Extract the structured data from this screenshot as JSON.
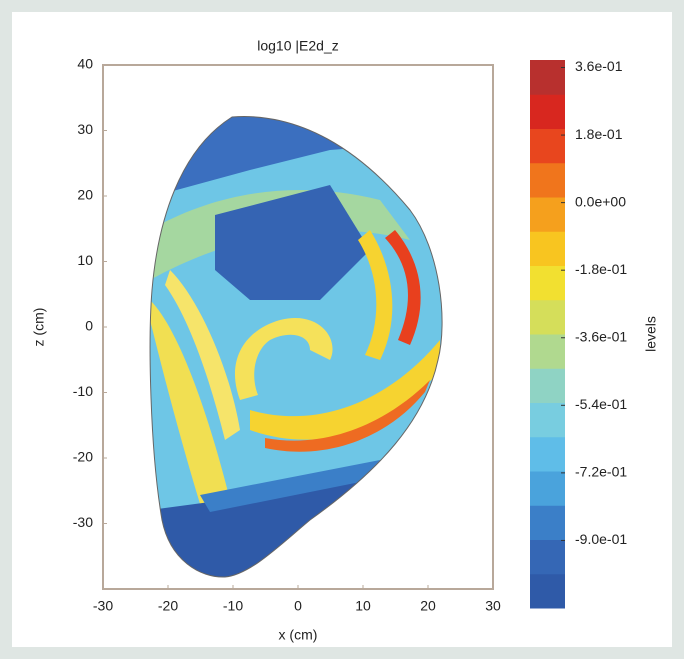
{
  "chart_data": {
    "type": "contour",
    "title": "log10 |E2d_z",
    "x_label": "x (cm)",
    "y_label": "z (cm)",
    "colorbar_label": "levels",
    "xlim": [
      -30,
      30
    ],
    "xticks": [
      -30,
      -20,
      -10,
      0,
      10,
      20,
      30
    ],
    "ylim": [
      -40,
      40
    ],
    "yticks": [
      -30,
      -20,
      -10,
      0,
      10,
      20,
      30,
      40
    ],
    "clim": [
      -1.08,
      0.38
    ],
    "cticks": [
      {
        "value": 0.36,
        "label": "3.6e-01"
      },
      {
        "value": 0.18,
        "label": "1.8e-01"
      },
      {
        "value": 0,
        "label": "0.0e+00"
      },
      {
        "value": -0.18,
        "label": "-1.8e-01"
      },
      {
        "value": -0.36,
        "label": "-3.6e-01"
      },
      {
        "value": -0.54,
        "label": "-5.4e-01"
      },
      {
        "value": -0.72,
        "label": "-7.2e-01"
      },
      {
        "value": -0.9,
        "label": "-9.0e-01"
      }
    ],
    "colormap": [
      "#2f5aa8",
      "#3567b5",
      "#3b7fc8",
      "#4aa3dc",
      "#5fbde8",
      "#78cde0",
      "#8fd3c4",
      "#b0d98f",
      "#d5de5a",
      "#f2e030",
      "#f8c520",
      "#f5a01d",
      "#f0751c",
      "#e8461e",
      "#d8271f",
      "#b8302e"
    ]
  }
}
